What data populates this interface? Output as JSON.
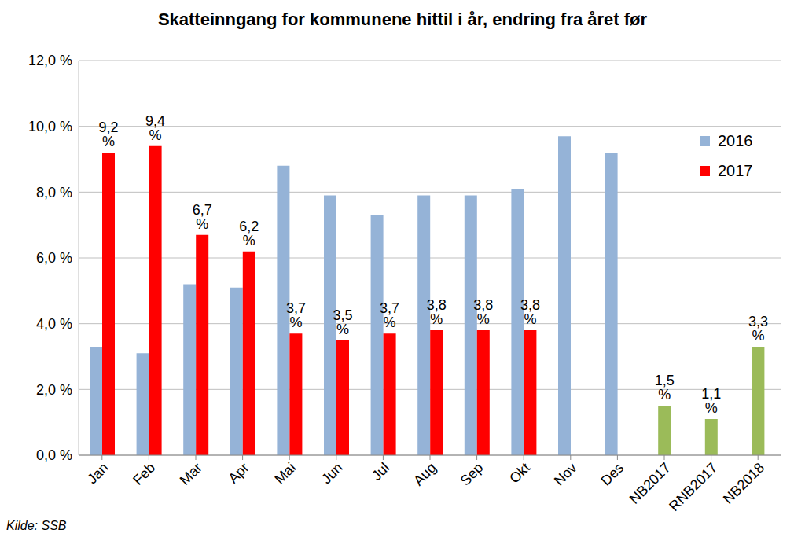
{
  "chart_data": {
    "type": "bar",
    "title": "Skatteinngang for kommunene hittil i år, endring fra året før",
    "source": "Kilde: SSB",
    "categories": [
      "Jan",
      "Feb",
      "Mar",
      "Apr",
      "Mai",
      "Jun",
      "Jul",
      "Aug",
      "Sep",
      "Okt",
      "Nov",
      "Des",
      "NB2017",
      "RNB2017",
      "NB2018"
    ],
    "series": [
      {
        "name": "2016",
        "color": "#95B3D7",
        "values": [
          3.3,
          3.1,
          5.2,
          5.1,
          8.8,
          7.9,
          7.3,
          7.9,
          7.9,
          8.1,
          9.7,
          9.2,
          null,
          null,
          null
        ]
      },
      {
        "name": "2017",
        "color": "#FF0000",
        "values": [
          9.2,
          9.4,
          6.7,
          6.2,
          3.7,
          3.5,
          3.7,
          3.8,
          3.8,
          3.8,
          null,
          null,
          null,
          null,
          null
        ],
        "value_labels": [
          "9,2 %",
          "9,4 %",
          "6,7 %",
          "6,2 %",
          "3,7 %",
          "3,5 %",
          "3,7 %",
          "3,8 %",
          "3,8 %",
          "3,8 %",
          null,
          null,
          null,
          null,
          null
        ]
      },
      {
        "color": "#9BBB59",
        "values": [
          null,
          null,
          null,
          null,
          null,
          null,
          null,
          null,
          null,
          null,
          null,
          null,
          1.5,
          1.1,
          3.3
        ],
        "value_labels": [
          null,
          null,
          null,
          null,
          null,
          null,
          null,
          null,
          null,
          null,
          null,
          null,
          "1,5 %",
          "1,1 %",
          "3,3 %"
        ]
      }
    ],
    "ylim": [
      0,
      12
    ],
    "yticks": [
      {
        "value": 0,
        "label": "0,0 %"
      },
      {
        "value": 2,
        "label": "2,0 %"
      },
      {
        "value": 4,
        "label": "4,0 %"
      },
      {
        "value": 6,
        "label": "6,0 %"
      },
      {
        "value": 8,
        "label": "8,0 %"
      },
      {
        "value": 10,
        "label": "10,0 %"
      },
      {
        "value": 12,
        "label": "12,0 %"
      }
    ],
    "grid": true,
    "legend": "upper right",
    "data_labels": true
  }
}
